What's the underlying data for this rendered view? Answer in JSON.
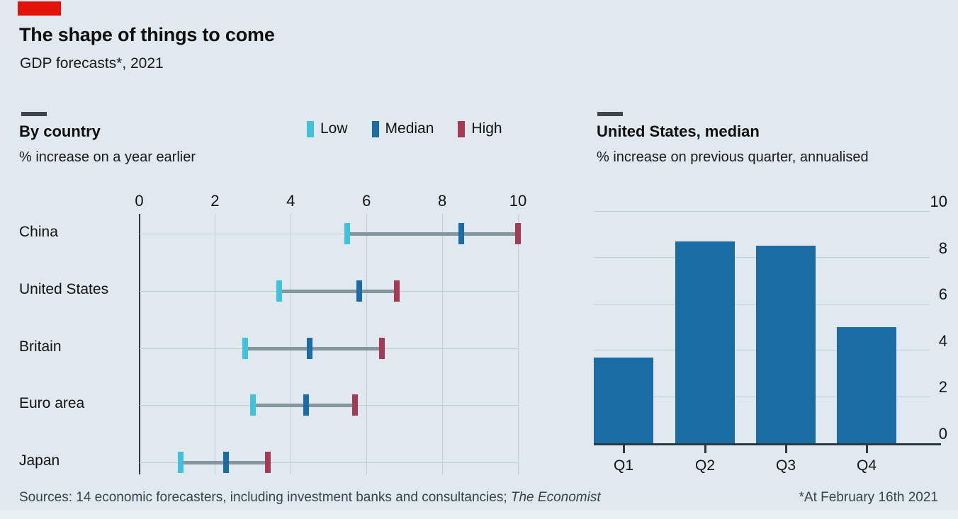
{
  "page": {
    "background": "#dfe9ef"
  },
  "brand": {
    "tag_color": "#e3120b"
  },
  "header": {
    "title": "The shape of things to come",
    "subtitle": "GDP forecasts*, 2021"
  },
  "chart_data": [
    {
      "type": "range_dot",
      "title": "By country",
      "subtitle": "% increase on a year earlier",
      "categories": [
        "China",
        "United States",
        "Britain",
        "Euro area",
        "Japan"
      ],
      "series": [
        {
          "name": "Low",
          "color": "#41c2dc",
          "values": [
            5.5,
            3.7,
            2.8,
            3.0,
            1.1
          ]
        },
        {
          "name": "Median",
          "color": "#1a6ca5",
          "values": [
            8.5,
            5.8,
            4.5,
            4.4,
            2.3
          ]
        },
        {
          "name": "High",
          "color": "#a43b53",
          "values": [
            10.0,
            6.8,
            6.4,
            5.7,
            3.4
          ]
        }
      ],
      "xlim": [
        0,
        10
      ],
      "xticks": [
        0,
        2,
        4,
        6,
        8,
        10
      ],
      "grid": true,
      "legend_position": "top-right",
      "range_line_color": "#86969e"
    },
    {
      "type": "bar",
      "title": "United States, median",
      "subtitle": "% increase on previous quarter, annualised",
      "categories": [
        "Q1",
        "Q2",
        "Q3",
        "Q4"
      ],
      "values": [
        3.7,
        8.7,
        8.5,
        5.0
      ],
      "ylim": [
        0,
        10
      ],
      "yticks": [
        0,
        2,
        4,
        6,
        8,
        10
      ],
      "ytick_side": "right",
      "grid": true,
      "bar_color": "#1a6ca5"
    }
  ],
  "footer": {
    "sources_prefix": "Sources: 14 economic forecasters, including investment banks and consultancies; ",
    "sources_italic": "The Economist",
    "note": "*At February 16th 2021"
  }
}
